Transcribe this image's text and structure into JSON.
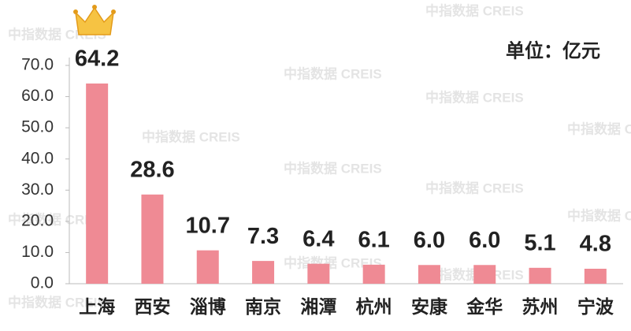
{
  "chart_data": {
    "type": "bar",
    "unit": "单位：亿元",
    "watermark": "中指数据 CREIS",
    "categories": [
      "上海",
      "西安",
      "淄博",
      "南京",
      "湘潭",
      "杭州",
      "安康",
      "金华",
      "苏州",
      "宁波"
    ],
    "values": [
      64.2,
      28.6,
      10.7,
      7.3,
      6.4,
      6.1,
      6.0,
      6.0,
      5.1,
      4.8
    ],
    "value_labels": [
      "64.2",
      "28.6",
      "10.7",
      "7.3",
      "6.4",
      "6.1",
      "6.0",
      "6.0",
      "5.1",
      "4.8"
    ],
    "color": "#ef8a94",
    "ylim": [
      0,
      70
    ],
    "yticks": [
      {
        "value": 0,
        "label": "0.0"
      },
      {
        "value": 10,
        "label": "10.0"
      },
      {
        "value": 20,
        "label": "20.0"
      },
      {
        "value": 30,
        "label": "30.0"
      },
      {
        "value": 40,
        "label": "40.0"
      },
      {
        "value": 50,
        "label": "50.0"
      },
      {
        "value": 60,
        "label": "60.0"
      },
      {
        "value": 70,
        "label": "70.0"
      }
    ]
  }
}
